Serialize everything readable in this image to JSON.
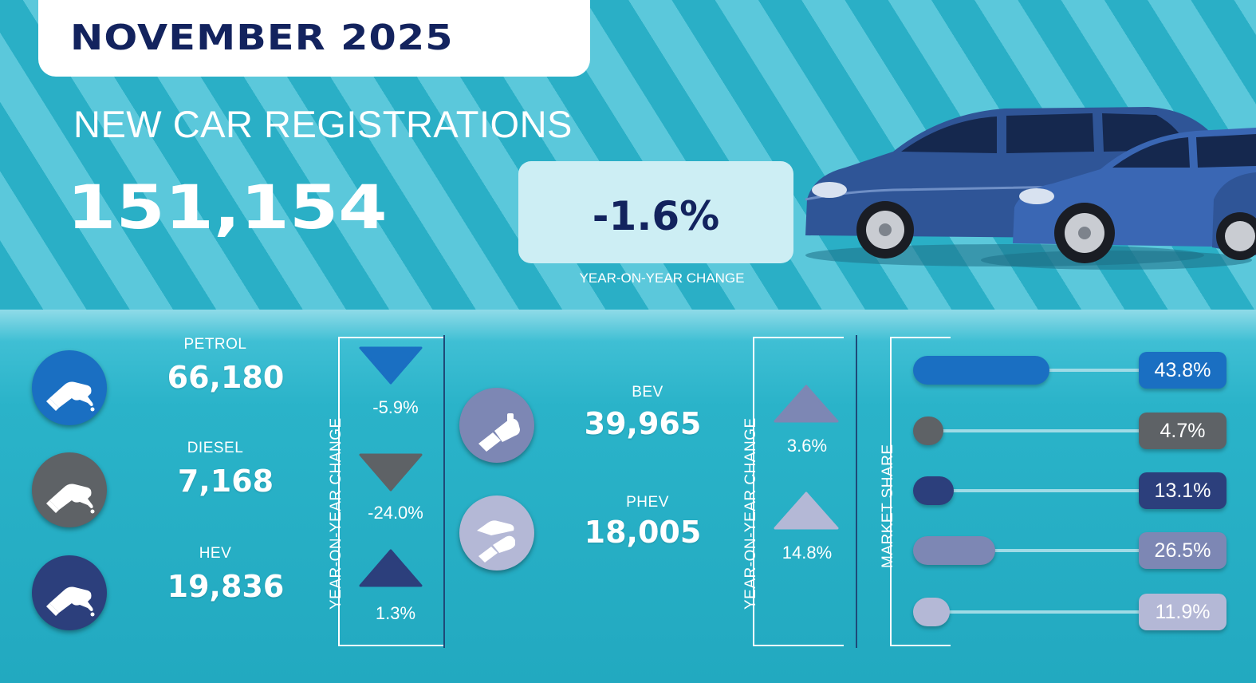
{
  "header": {
    "month": "NOVEMBER 2025",
    "title": "NEW CAR REGISTRATIONS",
    "total": "151,154",
    "yoy_value": "-1.6%",
    "yoy_label": "YEAR-ON-YEAR CHANGE"
  },
  "fuels_left": [
    {
      "name": "PETROL",
      "value": "66,180",
      "change": "-5.9%",
      "direction": "down",
      "color": "#1a6fc2",
      "icon": "fuel-pump-icon"
    },
    {
      "name": "DIESEL",
      "value": "7,168",
      "change": "-24.0%",
      "direction": "down",
      "color": "#5e6266",
      "icon": "fuel-pump-icon"
    },
    {
      "name": "HEV",
      "value": "19,836",
      "change": "1.3%",
      "direction": "up",
      "color": "#2c3f7c",
      "icon": "fuel-pump-icon"
    }
  ],
  "fuels_right": [
    {
      "name": "BEV",
      "value": "39,965",
      "change": "3.6%",
      "direction": "up",
      "color": "#7d87b4",
      "icon": "ev-charger-icon"
    },
    {
      "name": "PHEV",
      "value": "18,005",
      "change": "14.8%",
      "direction": "up",
      "color": "#b4b8d6",
      "icon": "ev-charger-and-pump-icon"
    }
  ],
  "yoy_axis_label": "YEAR-ON-YEAR CHANGE",
  "market_share": {
    "label": "MARKET SHARE",
    "items": [
      {
        "value": "43.8%",
        "share": 43.8,
        "color": "#1a6fc2"
      },
      {
        "value": "4.7%",
        "share": 4.7,
        "color": "#5e6266"
      },
      {
        "value": "13.1%",
        "share": 13.1,
        "color": "#2c3f7c"
      },
      {
        "value": "26.5%",
        "share": 26.5,
        "color": "#7d87b4"
      },
      {
        "value": "11.9%",
        "share": 11.9,
        "color": "#b4b8d6"
      }
    ]
  }
}
